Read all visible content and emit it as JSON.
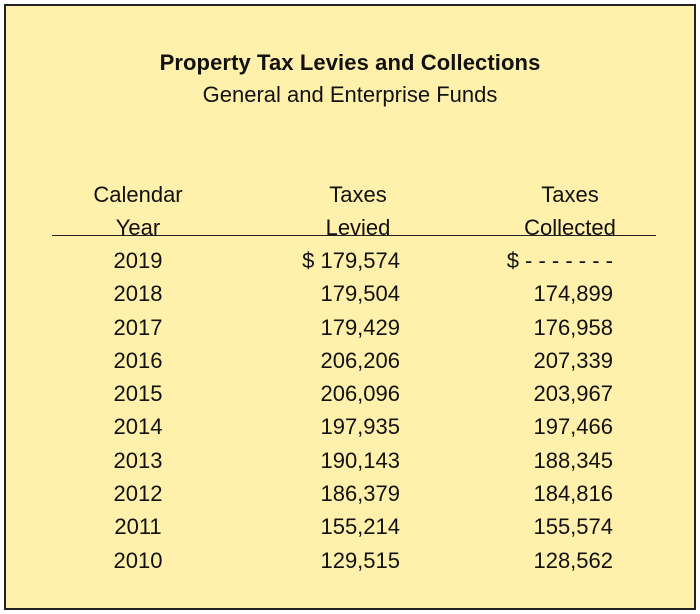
{
  "title": "Property Tax Levies and Collections",
  "subtitle": "General and Enterprise Funds",
  "headers": {
    "year": [
      "Calendar",
      "Year"
    ],
    "levied": [
      "Taxes",
      "Levied"
    ],
    "collected": [
      "Taxes",
      "Collected"
    ]
  },
  "rows": [
    {
      "year": "2019",
      "levied": "$ 179,574",
      "collected": "$ - - - - - - -"
    },
    {
      "year": "2018",
      "levied": "179,504",
      "collected": "174,899"
    },
    {
      "year": "2017",
      "levied": "179,429",
      "collected": "176,958"
    },
    {
      "year": "2016",
      "levied": "206,206",
      "collected": "207,339"
    },
    {
      "year": "2015",
      "levied": "206,096",
      "collected": "203,967"
    },
    {
      "year": "2014",
      "levied": "197,935",
      "collected": "197,466"
    },
    {
      "year": "2013",
      "levied": "190,143",
      "collected": "188,345"
    },
    {
      "year": "2012",
      "levied": "186,379",
      "collected": "184,816"
    },
    {
      "year": "2011",
      "levied": "155,214",
      "collected": "155,574"
    },
    {
      "year": "2010",
      "levied": "129,515",
      "collected": "128,562"
    }
  ],
  "colors": {
    "background": "#fff1ab",
    "border": "#222222",
    "text": "#111111"
  }
}
